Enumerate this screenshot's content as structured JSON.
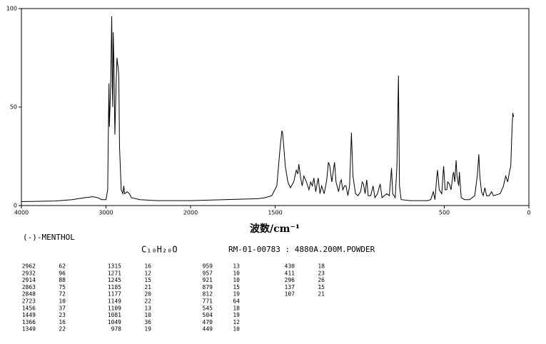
{
  "chart_data": {
    "type": "line",
    "xlabel": "波数/cm⁻¹",
    "xlim": [
      4000,
      0
    ],
    "xticks": [
      4000,
      3000,
      2000,
      1500,
      500,
      0
    ],
    "ylim": [
      0,
      100
    ],
    "yticks": [
      0,
      50,
      100
    ],
    "color": "#000000",
    "x": [
      4000,
      3600,
      3400,
      3250,
      3150,
      3100,
      3050,
      3000,
      2980,
      2970,
      2965,
      2960,
      2945,
      2932,
      2925,
      2920,
      2914,
      2905,
      2895,
      2880,
      2870,
      2863,
      2855,
      2848,
      2840,
      2820,
      2800,
      2790,
      2780,
      2750,
      2723,
      2700,
      2600,
      2400,
      2200,
      2000,
      1800,
      1600,
      1560,
      1520,
      1490,
      1470,
      1460,
      1456,
      1449,
      1440,
      1425,
      1410,
      1390,
      1375,
      1366,
      1360,
      1349,
      1340,
      1330,
      1315,
      1300,
      1290,
      1280,
      1271,
      1260,
      1250,
      1245,
      1235,
      1225,
      1210,
      1195,
      1185,
      1177,
      1165,
      1149,
      1140,
      1125,
      1115,
      1109,
      1100,
      1090,
      1081,
      1070,
      1060,
      1049,
      1040,
      1025,
      1010,
      995,
      985,
      978,
      968,
      959,
      957,
      950,
      935,
      921,
      910,
      895,
      879,
      868,
      855,
      840,
      825,
      812,
      805,
      790,
      780,
      771,
      765,
      755,
      700,
      600,
      580,
      565,
      555,
      545,
      540,
      530,
      515,
      504,
      495,
      485,
      480,
      470,
      460,
      450,
      445,
      438,
      430,
      425,
      415,
      411,
      400,
      380,
      350,
      320,
      305,
      296,
      290,
      280,
      270,
      260,
      250,
      235,
      220,
      210,
      170,
      150,
      137,
      125,
      115,
      107,
      100,
      95,
      90
    ],
    "values": [
      2,
      2.3,
      3,
      4,
      4.5,
      4,
      3,
      3,
      8,
      45,
      62,
      40,
      60,
      96,
      60,
      50,
      88,
      70,
      36,
      62,
      75,
      72,
      70,
      65,
      30,
      8,
      6,
      10,
      6,
      7,
      6,
      4,
      3,
      2.5,
      2.5,
      2.5,
      3,
      3.5,
      4,
      5,
      10,
      30,
      38,
      37,
      30,
      20,
      12,
      9,
      12,
      18,
      16,
      21,
      14,
      10,
      15,
      12,
      8,
      12,
      10,
      14,
      7,
      12,
      14,
      6,
      10,
      6,
      13,
      22,
      20,
      12,
      22,
      12,
      7,
      12,
      13,
      8,
      10,
      10,
      5,
      10,
      37,
      15,
      6,
      5,
      7,
      12,
      11,
      6,
      13,
      12,
      5,
      5,
      10,
      4,
      6,
      11,
      4,
      5,
      6,
      5,
      19,
      6,
      4,
      20,
      66,
      10,
      3,
      2.5,
      2.5,
      3,
      7,
      3,
      14,
      18,
      8,
      6,
      20,
      8,
      8,
      12,
      11,
      8,
      15,
      17,
      12,
      23,
      15,
      10,
      17,
      4,
      3,
      3,
      5,
      15,
      26,
      15,
      7,
      5,
      9,
      5,
      5,
      7,
      5,
      6,
      10,
      15,
      12,
      17,
      20,
      38,
      47,
      45
    ]
  },
  "sample_name": "(-)-MENTHOL",
  "formula": "C₁₀H₂₀O",
  "sample_id": "RM-01-00783 : 4880A.200M.POWDER",
  "peak_table": [
    [
      [
        2962,
        62
      ],
      [
        2932,
        96
      ],
      [
        2914,
        88
      ],
      [
        2863,
        75
      ],
      [
        2848,
        72
      ],
      [
        2723,
        10
      ],
      [
        1456,
        37
      ],
      [
        1449,
        23
      ],
      [
        1366,
        16
      ],
      [
        1349,
        22
      ]
    ],
    [
      [
        1315,
        16
      ],
      [
        1271,
        12
      ],
      [
        1245,
        15
      ],
      [
        1185,
        21
      ],
      [
        1177,
        20
      ],
      [
        1149,
        22
      ],
      [
        1109,
        13
      ],
      [
        1081,
        10
      ],
      [
        1049,
        36
      ],
      [
        978,
        19
      ]
    ],
    [
      [
        959,
        13
      ],
      [
        957,
        10
      ],
      [
        921,
        10
      ],
      [
        879,
        15
      ],
      [
        812,
        19
      ],
      [
        771,
        64
      ],
      [
        545,
        18
      ],
      [
        504,
        19
      ],
      [
        470,
        12
      ],
      [
        449,
        10
      ]
    ],
    [
      [
        430,
        18
      ],
      [
        411,
        23
      ],
      [
        296,
        26
      ],
      [
        137,
        15
      ],
      [
        107,
        21
      ]
    ]
  ]
}
